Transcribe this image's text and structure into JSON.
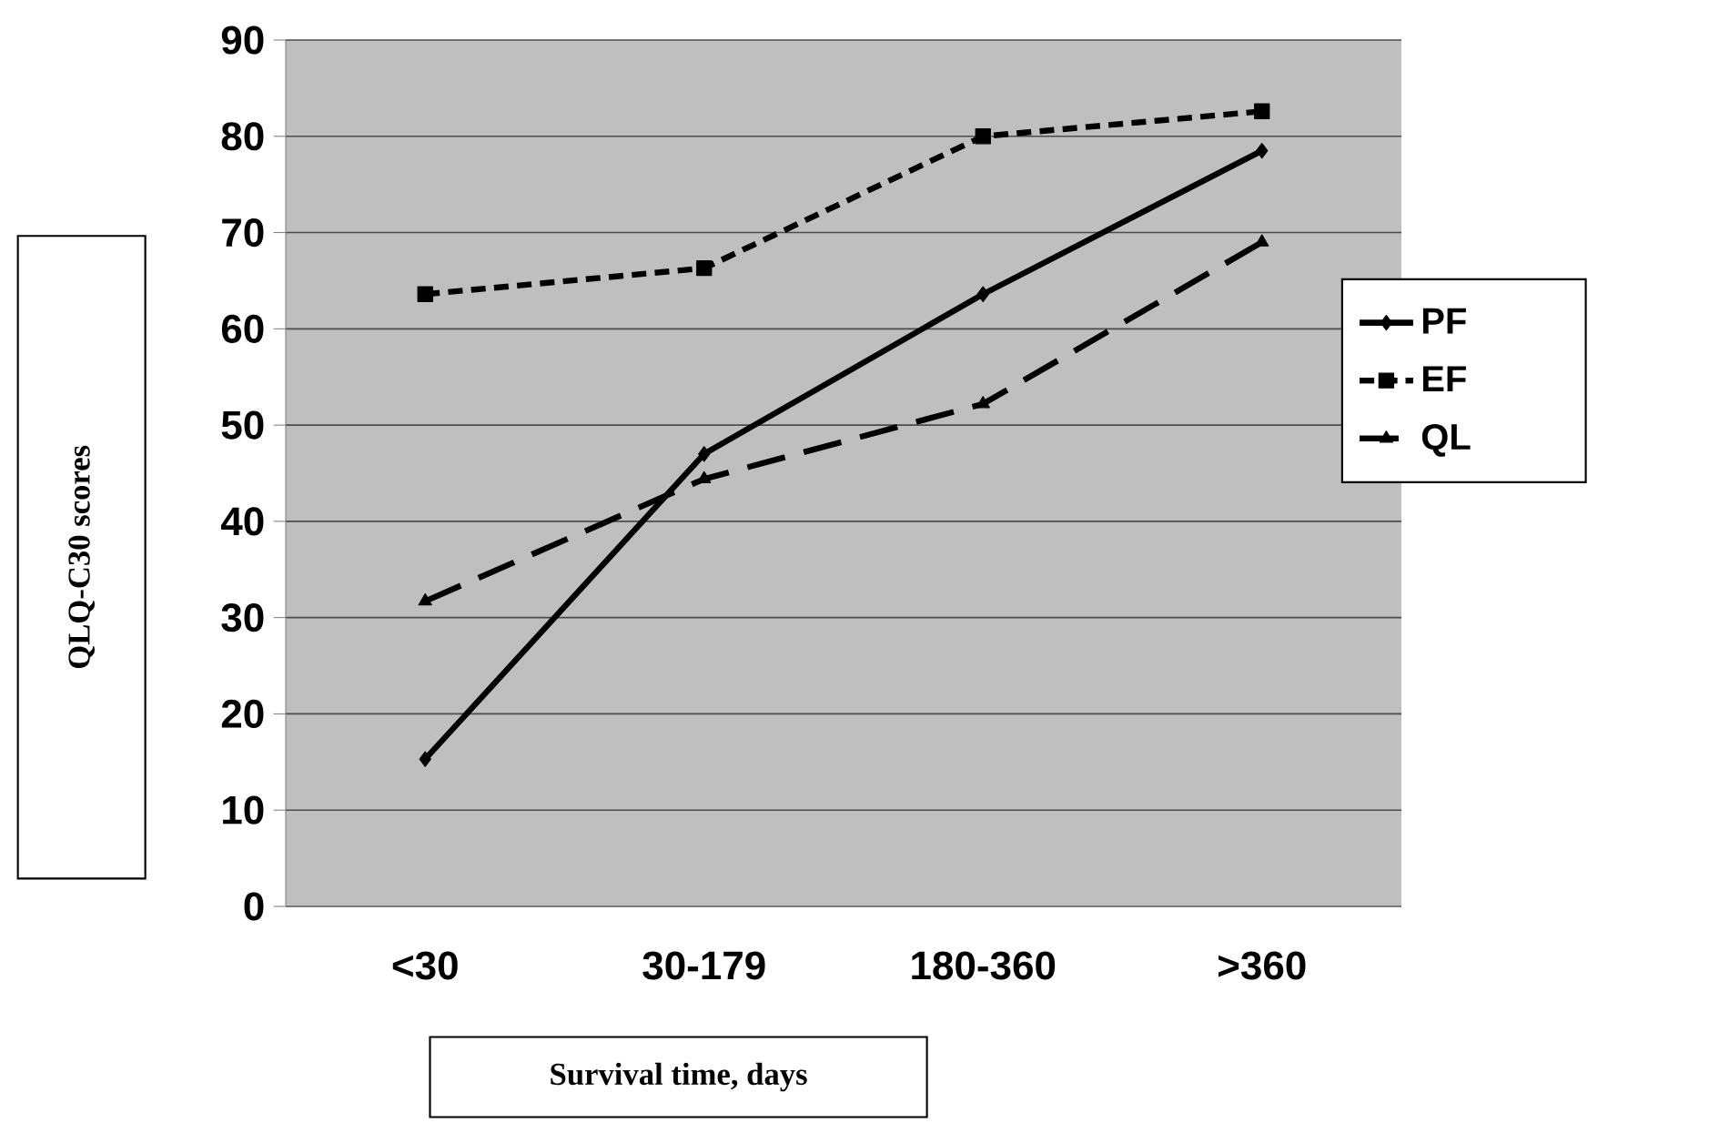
{
  "chart_data": {
    "type": "line",
    "xlabel": "Survival time, days",
    "ylabel": "QLQ-C30 scores",
    "categories": [
      "<30",
      "30-179",
      "180-360",
      ">360"
    ],
    "series": [
      {
        "name": "PF",
        "color": "#000000",
        "marker": "diamond",
        "line_style": "solid",
        "values": [
          15.3,
          47.0,
          63.6,
          78.5
        ]
      },
      {
        "name": "EF",
        "color": "#000000",
        "marker": "square",
        "line_style": "dotted",
        "values": [
          63.6,
          66.3,
          80.0,
          82.6
        ]
      },
      {
        "name": "QL",
        "color": "#000000",
        "marker": "triangle",
        "line_style": "dashed",
        "values": [
          31.7,
          44.4,
          52.2,
          69.0
        ]
      }
    ],
    "ylim": [
      0,
      90
    ],
    "yticks": [
      0,
      10,
      20,
      30,
      40,
      50,
      60,
      70,
      80,
      90
    ],
    "grid": "y",
    "legend": "right"
  }
}
